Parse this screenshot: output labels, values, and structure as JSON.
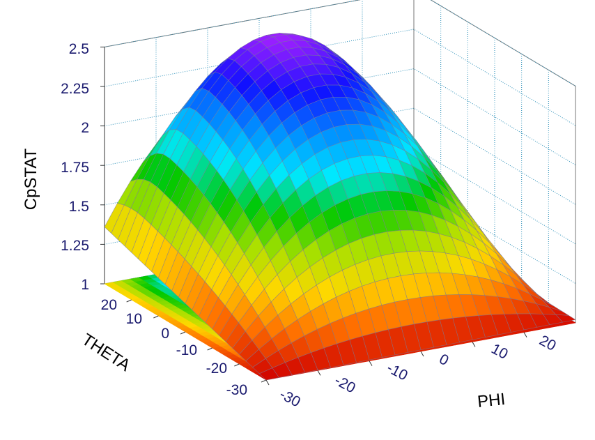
{
  "chart_data": {
    "type": "surface3d",
    "zlabel": "CpSTAT",
    "xlabel": "PHI",
    "ylabel": "THETA",
    "zlim": [
      1,
      2.5
    ],
    "xlim": [
      -30,
      30
    ],
    "ylim": [
      -30,
      30
    ],
    "z_ticks": [
      "1",
      "1.25",
      "1.5",
      "1.75",
      "2",
      "2.25",
      "2.5"
    ],
    "x_ticks": [
      "-30",
      "-20",
      "-10",
      "0",
      "10",
      "20"
    ],
    "y_ticks": [
      "-30",
      "-20",
      "-10",
      "0",
      "10",
      "20"
    ],
    "grid": true,
    "projected_contour_on_floor": true,
    "surface_corner_values": {
      "phi_-30_theta_-30": 1.0,
      "phi_30_theta_-30": 1.02,
      "phi_-30_theta_30": 1.36,
      "phi_30_theta_30": 1.05
    },
    "peak": {
      "phi": 0,
      "theta": 20,
      "value": 2.5
    },
    "colormap": [
      "#d00000",
      "#ff7000",
      "#ffd800",
      "#a8e000",
      "#00c800",
      "#00e8ff",
      "#0090ff",
      "#1010ff",
      "#a020ff"
    ]
  }
}
